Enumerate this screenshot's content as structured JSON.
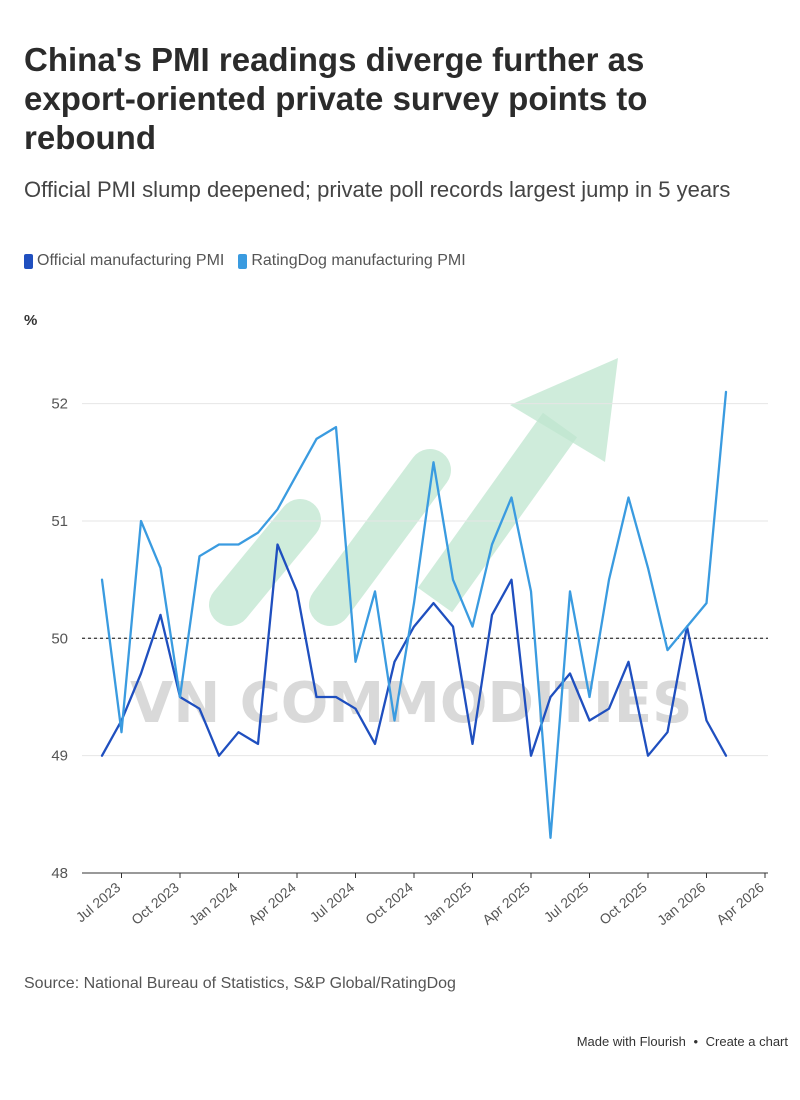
{
  "header": {
    "title": "China's PMI readings diverge further as export-oriented private survey points to rebound",
    "subtitle": "Official PMI slump deepened; private poll records largest jump in 5 years"
  },
  "footer": {
    "source": "Source: National Bureau of Statistics, S&P Global/RatingDog",
    "credit_made": "Made with Flourish",
    "credit_sep": "•",
    "credit_create": "Create a chart"
  },
  "colors": {
    "official": "#1f4fbf",
    "ratingdog": "#3a9be0",
    "grid": "#e6e6e6",
    "axis_text": "#555555",
    "reference": "#444444",
    "watermark_arrow": "#bfe6cf",
    "watermark_text": "#c9c9c9"
  },
  "watermark": {
    "text": "VN COMMODITIES"
  },
  "chart_data": {
    "type": "line",
    "title": "China's PMI readings diverge further as export-oriented private survey points to rebound",
    "ylabel": "%",
    "xlabel": "",
    "ylim": [
      48,
      52.5
    ],
    "yticks": [
      48,
      49,
      50,
      51,
      52
    ],
    "reference_line": 50,
    "x_start_index": 0,
    "x_start_label": "Jun 2023",
    "x_ticks": [
      {
        "label": "Jul 2023",
        "index": 1
      },
      {
        "label": "Oct 2023",
        "index": 4
      },
      {
        "label": "Jan 2024",
        "index": 7
      },
      {
        "label": "Apr 2024",
        "index": 10
      },
      {
        "label": "Jul 2024",
        "index": 13
      },
      {
        "label": "Oct 2024",
        "index": 16
      },
      {
        "label": "Jan 2025",
        "index": 19
      },
      {
        "label": "Apr 2025",
        "index": 22
      },
      {
        "label": "Jul 2025",
        "index": 25
      },
      {
        "label": "Oct 2025",
        "index": 28
      },
      {
        "label": "Jan 2026",
        "index": 31
      },
      {
        "label": "Apr 2026",
        "index": 34
      }
    ],
    "series": [
      {
        "name": "Official manufacturing PMI",
        "color": "#1f4fbf",
        "values": [
          49.0,
          49.3,
          49.7,
          50.2,
          49.5,
          49.4,
          49.0,
          49.2,
          49.1,
          50.8,
          50.4,
          49.5,
          49.5,
          49.4,
          49.1,
          49.8,
          50.1,
          50.3,
          50.1,
          49.1,
          50.2,
          50.5,
          49.0,
          49.5,
          49.7,
          49.3,
          49.4,
          49.8,
          49.0,
          49.2,
          50.1,
          49.3,
          49.0
        ]
      },
      {
        "name": "RatingDog manufacturing PMI",
        "color": "#3a9be0",
        "values": [
          50.5,
          49.2,
          51.0,
          50.6,
          49.5,
          50.7,
          50.8,
          50.8,
          50.9,
          51.1,
          51.4,
          51.7,
          51.8,
          49.8,
          50.4,
          49.3,
          50.3,
          51.5,
          50.5,
          50.1,
          50.8,
          51.2,
          50.4,
          48.3,
          50.4,
          49.5,
          50.5,
          51.2,
          50.6,
          49.9,
          50.1,
          50.3,
          52.1
        ]
      }
    ]
  }
}
